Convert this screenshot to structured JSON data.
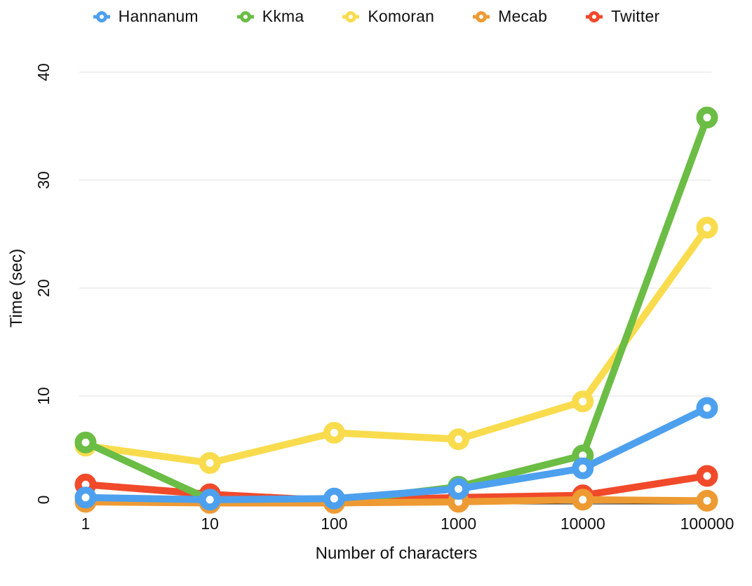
{
  "chart_data": {
    "type": "line",
    "x": [
      1,
      10,
      100,
      1000,
      10000,
      100000
    ],
    "x_scale": "log",
    "xtick_labels": [
      "1",
      "10",
      "100",
      "1000",
      "10000",
      "100000"
    ],
    "yticks": [
      0,
      10,
      20,
      30,
      40
    ],
    "ylim": [
      0,
      40
    ],
    "xlabel": "Number of characters",
    "ylabel": "Time (sec)",
    "title": "",
    "grid": "horizontal",
    "legend_position": "top",
    "series": [
      {
        "name": "Hannanum",
        "color": "#4DA0EE",
        "values": [
          0.6,
          0.4,
          0.5,
          1.4,
          3.3,
          8.9
        ]
      },
      {
        "name": "Kkma",
        "color": "#6BBD45",
        "values": [
          5.7,
          0.4,
          0.2,
          1.6,
          4.5,
          35.8
        ]
      },
      {
        "name": "Komoran",
        "color": "#F9DC4E",
        "values": [
          5.4,
          3.8,
          6.6,
          6.0,
          9.5,
          25.6
        ]
      },
      {
        "name": "Mecab",
        "color": "#EE9A33",
        "values": [
          0.2,
          0.1,
          0.1,
          0.2,
          0.4,
          0.3
        ]
      },
      {
        "name": "Twitter",
        "color": "#F04A2B",
        "values": [
          1.8,
          0.9,
          0.3,
          0.6,
          0.8,
          2.6
        ]
      }
    ],
    "draw_order": [
      "Komoran",
      "Twitter",
      "Kkma",
      "Mecab",
      "Hannanum"
    ],
    "colors": {
      "grid": "#E0E0E0",
      "axis_line": "#1A1A1A",
      "text": "#111111",
      "marker_hole": "#FFFFFF"
    }
  }
}
